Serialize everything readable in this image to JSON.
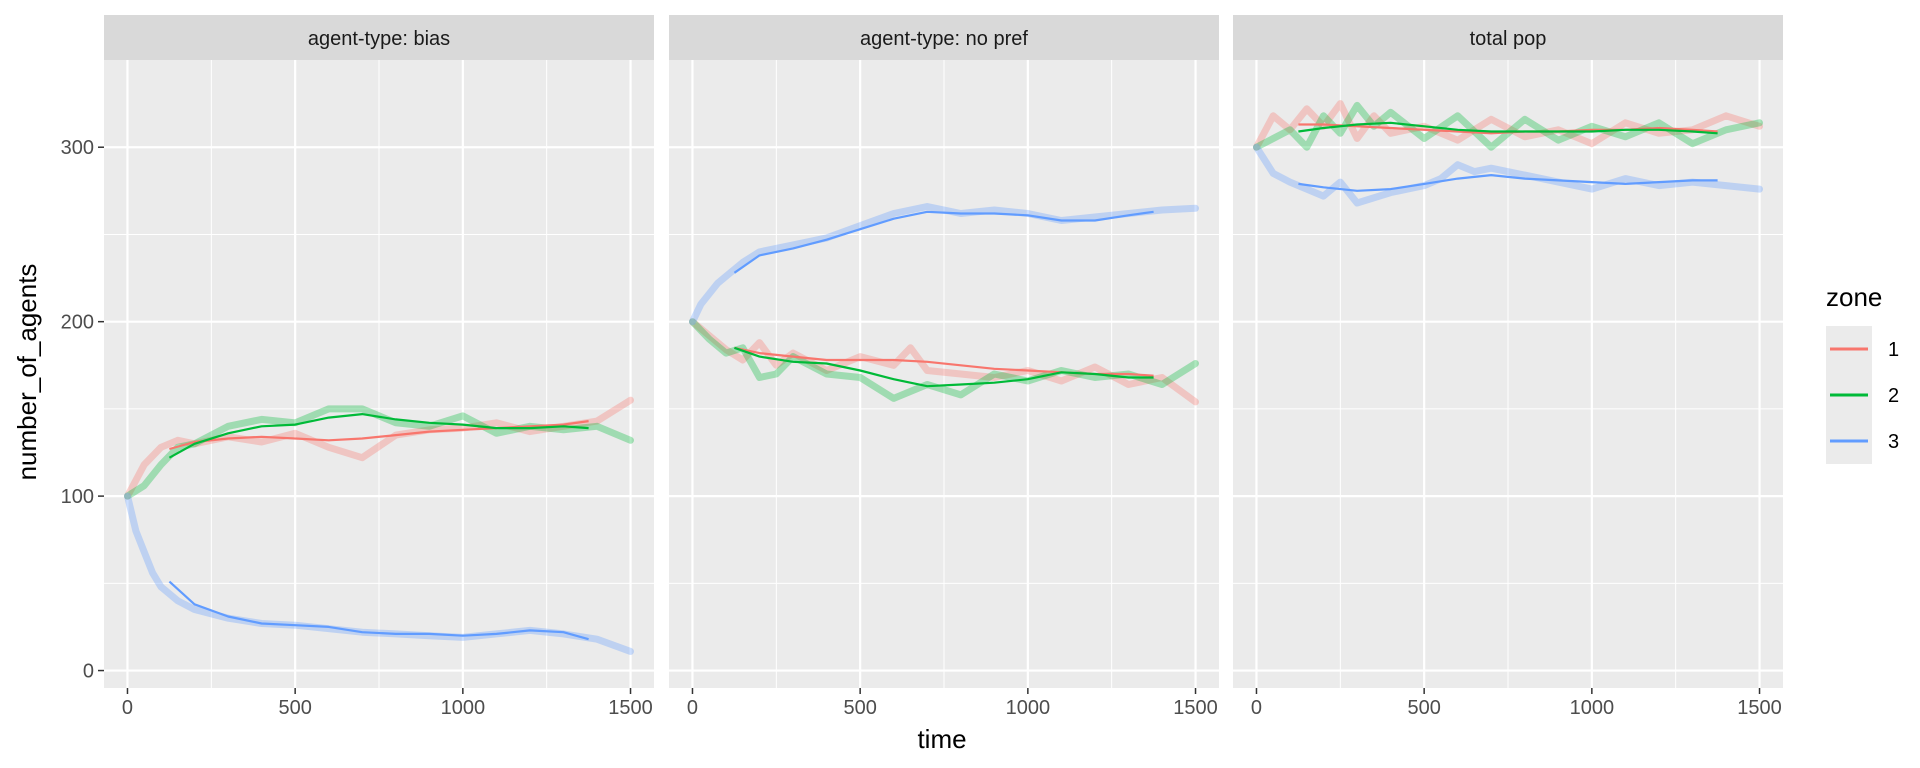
{
  "chart_data": {
    "type": "line",
    "xlabel": "time",
    "ylabel": "number_of_agents",
    "xlim": [
      -70,
      1570
    ],
    "ylim": [
      -10,
      350
    ],
    "x_ticks": [
      0,
      500,
      1000,
      1500
    ],
    "y_ticks": [
      0,
      100,
      200,
      300
    ],
    "x_tick_labels": [
      "0",
      "500",
      "1000",
      "1500"
    ],
    "y_tick_labels": [
      "0",
      "100",
      "200",
      "300"
    ],
    "legend": {
      "title": "zone",
      "placement": "right",
      "entries": [
        {
          "label": "1",
          "color": "#F8766D"
        },
        {
          "label": "2",
          "color": "#00BA38"
        },
        {
          "label": "3",
          "color": "#619CFF"
        }
      ]
    },
    "panels": [
      {
        "strip": "agent-type: bias",
        "raw": [
          {
            "zone": "1",
            "x": [
              0,
              50,
              100,
              150,
              200,
              300,
              400,
              500,
              600,
              700,
              800,
              900,
              1000,
              1100,
              1200,
              1300,
              1400,
              1500
            ],
            "y": [
              100,
              118,
              128,
              132,
              130,
              134,
              131,
              136,
              128,
              122,
              135,
              138,
              139,
              142,
              137,
              140,
              143,
              155
            ]
          },
          {
            "zone": "2",
            "x": [
              0,
              50,
              100,
              150,
              200,
              300,
              400,
              500,
              600,
              700,
              800,
              900,
              1000,
              1100,
              1200,
              1300,
              1400,
              1500
            ],
            "y": [
              100,
              106,
              118,
              128,
              130,
              140,
              144,
              142,
              150,
              150,
              142,
              140,
              146,
              136,
              140,
              138,
              140,
              132
            ]
          },
          {
            "zone": "3",
            "x": [
              0,
              25,
              50,
              75,
              100,
              150,
              200,
              300,
              400,
              500,
              600,
              700,
              800,
              900,
              1000,
              1100,
              1200,
              1300,
              1400,
              1500
            ],
            "y": [
              100,
              80,
              68,
              56,
              48,
              40,
              35,
              30,
              27,
              26,
              24,
              22,
              21,
              20,
              19,
              21,
              23,
              21,
              18,
              11
            ]
          }
        ],
        "smooth": [
          {
            "zone": "1",
            "x": [
              125,
              200,
              300,
              400,
              500,
              600,
              700,
              800,
              900,
              1000,
              1100,
              1200,
              1300,
              1375
            ],
            "y": [
              127,
              131,
              133,
              134,
              133,
              132,
              133,
              135,
              137,
              138,
              139,
              140,
              141,
              143
            ]
          },
          {
            "zone": "2",
            "x": [
              125,
              200,
              300,
              400,
              500,
              600,
              700,
              800,
              900,
              1000,
              1100,
              1200,
              1300,
              1375
            ],
            "y": [
              122,
              130,
              136,
              140,
              141,
              145,
              147,
              144,
              142,
              141,
              139,
              139,
              140,
              139
            ]
          },
          {
            "zone": "3",
            "x": [
              125,
              200,
              300,
              400,
              500,
              600,
              700,
              800,
              900,
              1000,
              1100,
              1200,
              1300,
              1375
            ],
            "y": [
              51,
              38,
              31,
              27,
              26,
              25,
              22,
              21,
              21,
              20,
              21,
              23,
              22,
              18
            ]
          }
        ]
      },
      {
        "strip": "agent-type: no pref",
        "raw": [
          {
            "zone": "1",
            "x": [
              0,
              50,
              100,
              150,
              200,
              250,
              300,
              400,
              500,
              600,
              650,
              700,
              800,
              900,
              1000,
              1100,
              1200,
              1300,
              1400,
              1500
            ],
            "y": [
              200,
              192,
              184,
              178,
              188,
              175,
              182,
              172,
              180,
              175,
              185,
              172,
              170,
              168,
              172,
              166,
              174,
              164,
              168,
              154
            ]
          },
          {
            "zone": "2",
            "x": [
              0,
              50,
              100,
              150,
              200,
              250,
              300,
              400,
              500,
              600,
              700,
              800,
              900,
              1000,
              1100,
              1200,
              1300,
              1400,
              1500
            ],
            "y": [
              200,
              190,
              182,
              185,
              168,
              170,
              180,
              170,
              168,
              156,
              164,
              158,
              170,
              166,
              172,
              168,
              170,
              164,
              176
            ]
          },
          {
            "zone": "3",
            "x": [
              0,
              25,
              50,
              75,
              100,
              150,
              200,
              300,
              400,
              500,
              600,
              700,
              800,
              900,
              1000,
              1100,
              1200,
              1300,
              1400,
              1500
            ],
            "y": [
              200,
              210,
              216,
              222,
              226,
              234,
              240,
              244,
              248,
              255,
              262,
              266,
              262,
              264,
              262,
              258,
              260,
              262,
              264,
              265
            ]
          }
        ],
        "smooth": [
          {
            "zone": "1",
            "x": [
              125,
              200,
              300,
              400,
              500,
              600,
              700,
              800,
              900,
              1000,
              1100,
              1200,
              1300,
              1375
            ],
            "y": [
              185,
              182,
              180,
              178,
              178,
              178,
              177,
              175,
              173,
              172,
              171,
              170,
              170,
              169
            ]
          },
          {
            "zone": "2",
            "x": [
              125,
              200,
              300,
              400,
              500,
              600,
              700,
              800,
              900,
              1000,
              1100,
              1200,
              1300,
              1375
            ],
            "y": [
              185,
              180,
              177,
              176,
              172,
              167,
              163,
              164,
              165,
              167,
              171,
              170,
              168,
              168
            ]
          },
          {
            "zone": "3",
            "x": [
              125,
              200,
              300,
              400,
              500,
              600,
              700,
              800,
              900,
              1000,
              1100,
              1200,
              1300,
              1375
            ],
            "y": [
              228,
              238,
              242,
              247,
              253,
              259,
              263,
              262,
              262,
              261,
              258,
              258,
              261,
              263
            ]
          }
        ]
      },
      {
        "strip": "total pop",
        "raw": [
          {
            "zone": "1",
            "x": [
              0,
              50,
              100,
              150,
              200,
              250,
              300,
              350,
              400,
              500,
              600,
              700,
              800,
              900,
              1000,
              1100,
              1200,
              1300,
              1400,
              1500
            ],
            "y": [
              300,
              318,
              310,
              322,
              312,
              325,
              305,
              318,
              308,
              312,
              304,
              316,
              306,
              310,
              302,
              314,
              308,
              310,
              318,
              312
            ]
          },
          {
            "zone": "2",
            "x": [
              0,
              50,
              100,
              150,
              200,
              250,
              300,
              350,
              400,
              500,
              600,
              700,
              800,
              900,
              1000,
              1100,
              1200,
              1300,
              1400,
              1500
            ],
            "y": [
              300,
              305,
              310,
              300,
              318,
              308,
              324,
              312,
              320,
              305,
              318,
              300,
              316,
              304,
              312,
              306,
              314,
              302,
              310,
              314
            ]
          },
          {
            "zone": "3",
            "x": [
              0,
              50,
              100,
              150,
              200,
              250,
              300,
              400,
              500,
              550,
              600,
              650,
              700,
              800,
              900,
              1000,
              1100,
              1200,
              1300,
              1400,
              1500
            ],
            "y": [
              300,
              285,
              280,
              276,
              272,
              280,
              268,
              274,
              278,
              282,
              290,
              286,
              288,
              284,
              280,
              276,
              282,
              278,
              280,
              278,
              276
            ]
          }
        ],
        "smooth": [
          {
            "zone": "1",
            "x": [
              125,
              200,
              300,
              400,
              500,
              600,
              700,
              800,
              900,
              1000,
              1100,
              1200,
              1300,
              1375
            ],
            "y": [
              313,
              313,
              312,
              311,
              310,
              309,
              308,
              309,
              309,
              310,
              310,
              311,
              310,
              309
            ]
          },
          {
            "zone": "2",
            "x": [
              125,
              200,
              300,
              400,
              500,
              600,
              700,
              800,
              900,
              1000,
              1100,
              1200,
              1300,
              1375
            ],
            "y": [
              309,
              311,
              313,
              314,
              312,
              310,
              309,
              309,
              309,
              309,
              310,
              310,
              309,
              308
            ]
          },
          {
            "zone": "3",
            "x": [
              125,
              200,
              300,
              400,
              500,
              600,
              700,
              800,
              900,
              1000,
              1100,
              1200,
              1300,
              1375
            ],
            "y": [
              279,
              277,
              275,
              276,
              279,
              282,
              284,
              282,
              281,
              280,
              279,
              280,
              281,
              281
            ]
          }
        ]
      }
    ]
  }
}
